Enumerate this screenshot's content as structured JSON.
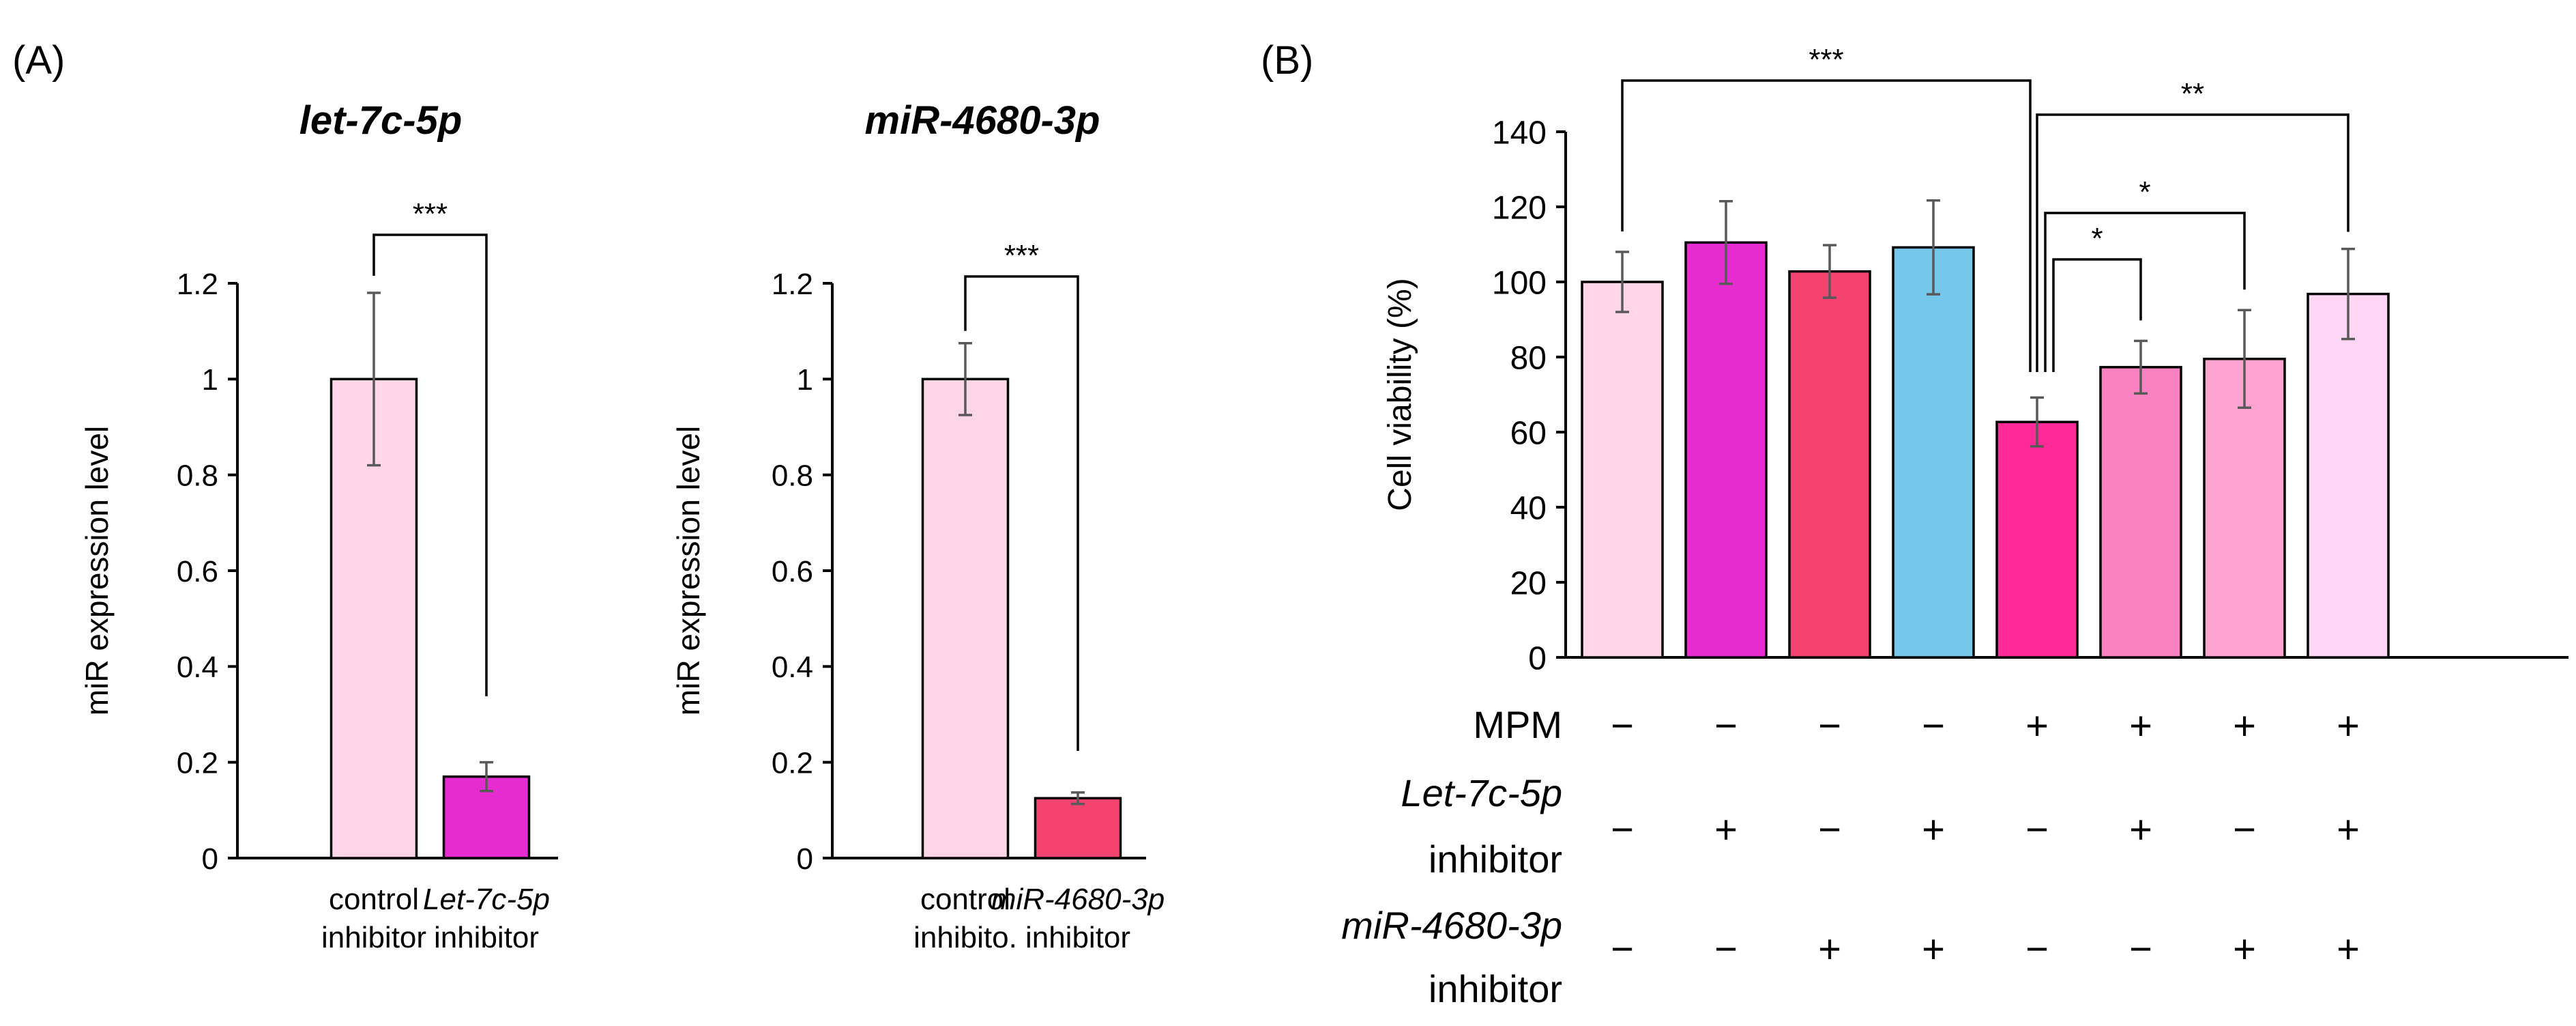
{
  "panel_labels": {
    "a": "(A)",
    "b": "(B)"
  },
  "colors": {
    "axis": "#000000",
    "error_bar": "#595959",
    "bracket": "#000000",
    "control": "#ffd6e8",
    "let7c": "#e62bd1",
    "mir4680": "#f2446e",
    "combo_blue": "#76c8eb",
    "mpm": "#fd2a97",
    "mpm_let7c": "#fb82c0",
    "mpm_mir4680": "#fea3d1",
    "mpm_both": "#ffd6f5"
  },
  "chart_data": [
    {
      "id": "A-left",
      "type": "bar",
      "title": "let-7c-5p",
      "ylabel": "miR expression level",
      "ylim": [
        0,
        1.2
      ],
      "yticks": [
        "0",
        "0.2",
        "0.4",
        "0.6",
        "0.8",
        "1",
        "1.2"
      ],
      "categories": [
        [
          "control",
          "inhibitor"
        ],
        [
          "Let-7c-5p",
          "inhibitor"
        ]
      ],
      "values": [
        1.0,
        0.17
      ],
      "errors": [
        0.18,
        0.03
      ],
      "significance": [
        {
          "from": 0,
          "to": 1,
          "label": "***"
        }
      ]
    },
    {
      "id": "A-right",
      "type": "bar",
      "title": "miR-4680-3p",
      "ylabel": "miR expression level",
      "ylim": [
        0,
        1.2
      ],
      "yticks": [
        "0",
        "0.2",
        "0.4",
        "0.6",
        "0.8",
        "1",
        "1.2"
      ],
      "categories": [
        [
          "control",
          "inhibito."
        ],
        [
          "miR-4680-3p",
          "inhibitor"
        ]
      ],
      "values": [
        1.0,
        0.125
      ],
      "errors": [
        0.075,
        0.012
      ],
      "significance": [
        {
          "from": 0,
          "to": 1,
          "label": "***"
        }
      ]
    },
    {
      "id": "B",
      "type": "bar",
      "title": "",
      "ylabel": "Cell viability (%)",
      "ylim": [
        0,
        140
      ],
      "yticks": [
        "0",
        "20",
        "40",
        "60",
        "80",
        "100",
        "120",
        "140"
      ],
      "values": [
        100,
        110.5,
        102.8,
        109.2,
        62.7,
        77.3,
        79.5,
        96.8
      ],
      "errors": [
        8,
        11,
        7,
        12.5,
        6.5,
        7,
        13,
        12
      ],
      "condition_rows": [
        {
          "label": [
            "MPM"
          ],
          "marks": [
            "−",
            "−",
            "−",
            "−",
            "+",
            "+",
            "+",
            "+"
          ]
        },
        {
          "label": [
            "Let-7c-5p",
            "inhibitor"
          ],
          "marks": [
            "−",
            "+",
            "−",
            "+",
            "−",
            "+",
            "−",
            "+"
          ]
        },
        {
          "label": [
            "miR-4680-3p",
            "inhibitor"
          ],
          "marks": [
            "−",
            "−",
            "+",
            "+",
            "−",
            "−",
            "+",
            "+"
          ]
        }
      ],
      "significance": [
        {
          "from": 0,
          "to": 4,
          "label": "***"
        },
        {
          "from": 4,
          "to": 7,
          "label": "**"
        },
        {
          "from": 4,
          "to": 6,
          "label": "*"
        },
        {
          "from": 4,
          "to": 5,
          "label": "*"
        }
      ]
    }
  ]
}
